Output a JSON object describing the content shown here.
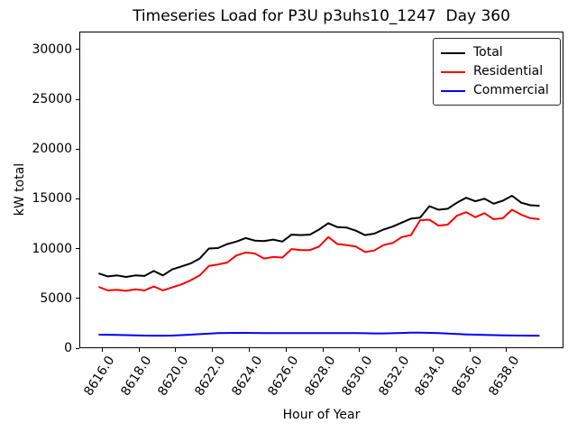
{
  "title": "Timeseries Load for P3U p3uhs10_1247  Day 360",
  "axes": {
    "xlabel": "Hour of Year",
    "ylabel": "kW total"
  },
  "legend": {
    "items": [
      {
        "label": "Total",
        "color": "#000000"
      },
      {
        "label": "Residential",
        "color": "#ff0000"
      },
      {
        "label": "Commercial",
        "color": "#0000ff"
      }
    ]
  },
  "chart_data": {
    "type": "line",
    "title": "Timeseries Load for P3U p3uhs10_1247  Day 360",
    "xlabel": "Hour of Year",
    "ylabel": "kW total",
    "grid": false,
    "legend_position": "upper right",
    "xlim": [
      8614.75,
      8641.1
    ],
    "ylim": [
      0,
      31800
    ],
    "xtick_values": [
      8616,
      8618,
      8620,
      8622,
      8624,
      8626,
      8628,
      8630,
      8632,
      8634,
      8636,
      8638
    ],
    "xtick_labels": [
      "8616.0",
      "8618.0",
      "8620.0",
      "8622.0",
      "8624.0",
      "8626.0",
      "8628.0",
      "8630.0",
      "8632.0",
      "8634.0",
      "8636.0",
      "8638.0"
    ],
    "ytick_values": [
      0,
      5000,
      10000,
      15000,
      20000,
      25000,
      30000
    ],
    "ytick_labels": [
      "0",
      "5000",
      "10000",
      "15000",
      "20000",
      "25000",
      "30000"
    ],
    "x": [
      8615.75,
      8616.25,
      8616.75,
      8617.25,
      8617.75,
      8618.25,
      8618.75,
      8619.25,
      8619.75,
      8620.25,
      8620.75,
      8621.25,
      8621.75,
      8622.25,
      8622.75,
      8623.25,
      8623.75,
      8624.25,
      8624.75,
      8625.25,
      8625.75,
      8626.25,
      8626.75,
      8627.25,
      8627.75,
      8628.25,
      8628.75,
      8629.25,
      8629.75,
      8630.25,
      8630.75,
      8631.25,
      8631.75,
      8632.25,
      8632.75,
      8633.25,
      8633.75,
      8634.25,
      8634.75,
      8635.25,
      8635.75,
      8636.25,
      8636.75,
      8637.25,
      8637.75,
      8638.25,
      8638.75,
      8639.25,
      8639.75
    ],
    "series": [
      {
        "name": "Total",
        "color": "#000000",
        "values": [
          7600,
          7300,
          7400,
          7250,
          7400,
          7350,
          7850,
          7400,
          8000,
          8300,
          8600,
          9100,
          10100,
          10150,
          10550,
          10800,
          11150,
          10900,
          10850,
          11000,
          10800,
          11500,
          11450,
          11500,
          12000,
          12650,
          12250,
          12200,
          11900,
          11450,
          11600,
          12000,
          12300,
          12700,
          13100,
          13200,
          14350,
          14000,
          14100,
          14700,
          15200,
          14850,
          15100,
          14600,
          14900,
          15400,
          14700,
          14450,
          14400
        ]
      },
      {
        "name": "Residential",
        "color": "#ff0000",
        "values": [
          6250,
          5900,
          5950,
          5850,
          6000,
          5900,
          6300,
          5900,
          6200,
          6500,
          6900,
          7400,
          8350,
          8500,
          8700,
          9400,
          9700,
          9600,
          9100,
          9250,
          9200,
          10050,
          9950,
          9950,
          10300,
          11250,
          10550,
          10450,
          10300,
          9750,
          9900,
          10450,
          10650,
          11250,
          11450,
          12950,
          13000,
          12400,
          12500,
          13400,
          13750,
          13250,
          13650,
          13050,
          13150,
          14000,
          13500,
          13150,
          13050
        ]
      },
      {
        "name": "Commercial",
        "color": "#0000ff",
        "values": [
          1450,
          1440,
          1420,
          1400,
          1380,
          1360,
          1350,
          1350,
          1360,
          1400,
          1450,
          1500,
          1550,
          1600,
          1620,
          1630,
          1630,
          1620,
          1610,
          1600,
          1600,
          1600,
          1600,
          1600,
          1600,
          1610,
          1610,
          1600,
          1600,
          1590,
          1580,
          1580,
          1590,
          1620,
          1650,
          1650,
          1630,
          1600,
          1570,
          1520,
          1480,
          1450,
          1420,
          1400,
          1380,
          1370,
          1360,
          1350,
          1350
        ]
      }
    ]
  }
}
